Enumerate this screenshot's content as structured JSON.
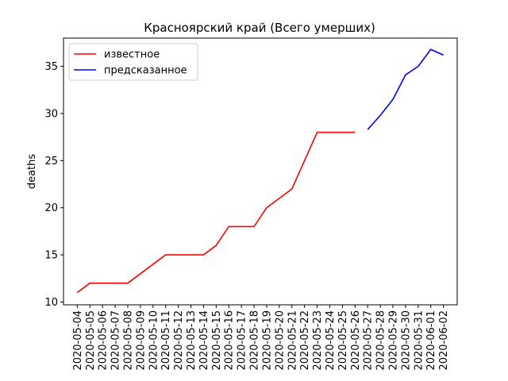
{
  "chart_data": {
    "type": "line",
    "title": "Красноярский край (Всего умерших)",
    "xlabel": "",
    "ylabel": "deaths",
    "x": [
      "2020-05-04",
      "2020-05-05",
      "2020-05-06",
      "2020-05-07",
      "2020-05-08",
      "2020-05-09",
      "2020-05-10",
      "2020-05-11",
      "2020-05-12",
      "2020-05-13",
      "2020-05-14",
      "2020-05-15",
      "2020-05-16",
      "2020-05-17",
      "2020-05-18",
      "2020-05-19",
      "2020-05-20",
      "2020-05-21",
      "2020-05-22",
      "2020-05-23",
      "2020-05-24",
      "2020-05-25",
      "2020-05-26",
      "2020-05-27",
      "2020-05-28",
      "2020-05-29",
      "2020-05-30",
      "2020-05-31",
      "2020-06-01",
      "2020-06-02"
    ],
    "ylim": [
      9.7,
      38.0
    ],
    "yticks": [
      10,
      15,
      20,
      25,
      30,
      35
    ],
    "grid": false,
    "legend_position": "top-left",
    "series": [
      {
        "name": "известное",
        "color": "#ff0000",
        "points": [
          {
            "x": "2020-05-04",
            "y": 11
          },
          {
            "x": "2020-05-05",
            "y": 12
          },
          {
            "x": "2020-05-06",
            "y": 12
          },
          {
            "x": "2020-05-07",
            "y": 12
          },
          {
            "x": "2020-05-08",
            "y": 12
          },
          {
            "x": "2020-05-09",
            "y": 13
          },
          {
            "x": "2020-05-10",
            "y": 14
          },
          {
            "x": "2020-05-11",
            "y": 15
          },
          {
            "x": "2020-05-12",
            "y": 15
          },
          {
            "x": "2020-05-13",
            "y": 15
          },
          {
            "x": "2020-05-14",
            "y": 15
          },
          {
            "x": "2020-05-15",
            "y": 16
          },
          {
            "x": "2020-05-16",
            "y": 18
          },
          {
            "x": "2020-05-17",
            "y": 18
          },
          {
            "x": "2020-05-18",
            "y": 18
          },
          {
            "x": "2020-05-19",
            "y": 20
          },
          {
            "x": "2020-05-20",
            "y": 21
          },
          {
            "x": "2020-05-21",
            "y": 22
          },
          {
            "x": "2020-05-22",
            "y": 25
          },
          {
            "x": "2020-05-23",
            "y": 28
          },
          {
            "x": "2020-05-24",
            "y": 28
          },
          {
            "x": "2020-05-25",
            "y": 28
          },
          {
            "x": "2020-05-26",
            "y": 28
          }
        ]
      },
      {
        "name": "предсказанное",
        "color": "#0000ff",
        "points": [
          {
            "x": "2020-05-27",
            "y": 28.3
          },
          {
            "x": "2020-05-28",
            "y": 29.8
          },
          {
            "x": "2020-05-29",
            "y": 31.5
          },
          {
            "x": "2020-05-30",
            "y": 34.1
          },
          {
            "x": "2020-05-31",
            "y": 35.0
          },
          {
            "x": "2020-06-01",
            "y": 36.8
          },
          {
            "x": "2020-06-02",
            "y": 36.2
          }
        ]
      }
    ]
  }
}
